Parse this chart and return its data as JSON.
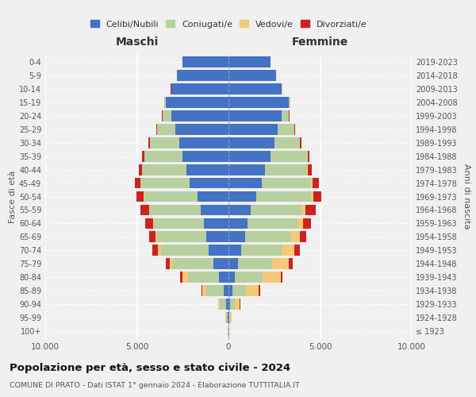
{
  "age_groups": [
    "100+",
    "95-99",
    "90-94",
    "85-89",
    "80-84",
    "75-79",
    "70-74",
    "65-69",
    "60-64",
    "55-59",
    "50-54",
    "45-49",
    "40-44",
    "35-39",
    "30-34",
    "25-29",
    "20-24",
    "15-19",
    "10-14",
    "5-9",
    "0-4"
  ],
  "birth_years": [
    "≤ 1923",
    "1924-1928",
    "1929-1933",
    "1934-1938",
    "1939-1943",
    "1944-1948",
    "1949-1953",
    "1954-1958",
    "1959-1963",
    "1964-1968",
    "1969-1973",
    "1974-1978",
    "1979-1983",
    "1984-1988",
    "1989-1993",
    "1994-1998",
    "1999-2003",
    "2004-2008",
    "2009-2013",
    "2014-2018",
    "2019-2023"
  ],
  "maschi": {
    "celibe": [
      20,
      60,
      130,
      280,
      520,
      820,
      1100,
      1200,
      1350,
      1500,
      1700,
      2100,
      2300,
      2500,
      2700,
      2900,
      3100,
      3400,
      3100,
      2800,
      2500
    ],
    "coniugato": [
      10,
      80,
      350,
      950,
      1700,
      2200,
      2600,
      2700,
      2700,
      2800,
      2900,
      2700,
      2400,
      2100,
      1600,
      1000,
      500,
      100,
      30,
      10,
      5
    ],
    "vedovo": [
      5,
      30,
      80,
      200,
      280,
      200,
      160,
      100,
      60,
      40,
      30,
      20,
      10,
      5,
      5,
      5,
      5,
      5,
      5,
      5,
      5
    ],
    "divorziato": [
      2,
      5,
      15,
      50,
      120,
      200,
      300,
      350,
      420,
      480,
      380,
      300,
      200,
      120,
      60,
      20,
      10,
      5,
      5,
      2,
      2
    ]
  },
  "femmine": {
    "nubile": [
      10,
      40,
      80,
      200,
      350,
      500,
      700,
      900,
      1050,
      1200,
      1500,
      1800,
      2000,
      2300,
      2500,
      2700,
      2900,
      3300,
      2900,
      2600,
      2300
    ],
    "coniugata": [
      5,
      60,
      280,
      750,
      1500,
      1900,
      2200,
      2500,
      2700,
      2800,
      3000,
      2700,
      2300,
      2000,
      1400,
      900,
      400,
      80,
      20,
      5,
      2
    ],
    "vedova": [
      8,
      60,
      250,
      700,
      1000,
      900,
      700,
      500,
      300,
      200,
      130,
      80,
      50,
      30,
      15,
      10,
      8,
      5,
      5,
      5,
      5
    ],
    "divorziata": [
      2,
      5,
      20,
      60,
      100,
      200,
      280,
      350,
      450,
      550,
      450,
      350,
      200,
      100,
      50,
      20,
      10,
      5,
      2,
      2,
      2
    ]
  },
  "colors": {
    "celibe": "#4472c4",
    "coniugato": "#b8cfa0",
    "vedovo": "#f5c97a",
    "divorziato": "#cc2222"
  },
  "title": "Popolazione per età, sesso e stato civile - 2024",
  "subtitle": "COMUNE DI PRATO - Dati ISTAT 1° gennaio 2024 - Elaborazione TUTTITALIA.IT",
  "xlabel_left": "Maschi",
  "xlabel_right": "Femmine",
  "ylabel_left": "Fasce di età",
  "ylabel_right": "Anni di nascita",
  "legend_labels": [
    "Celibi/Nubili",
    "Coniugati/e",
    "Vedovi/e",
    "Divorziati/e"
  ],
  "xlim": 10000,
  "background_color": "#f0f0f0"
}
